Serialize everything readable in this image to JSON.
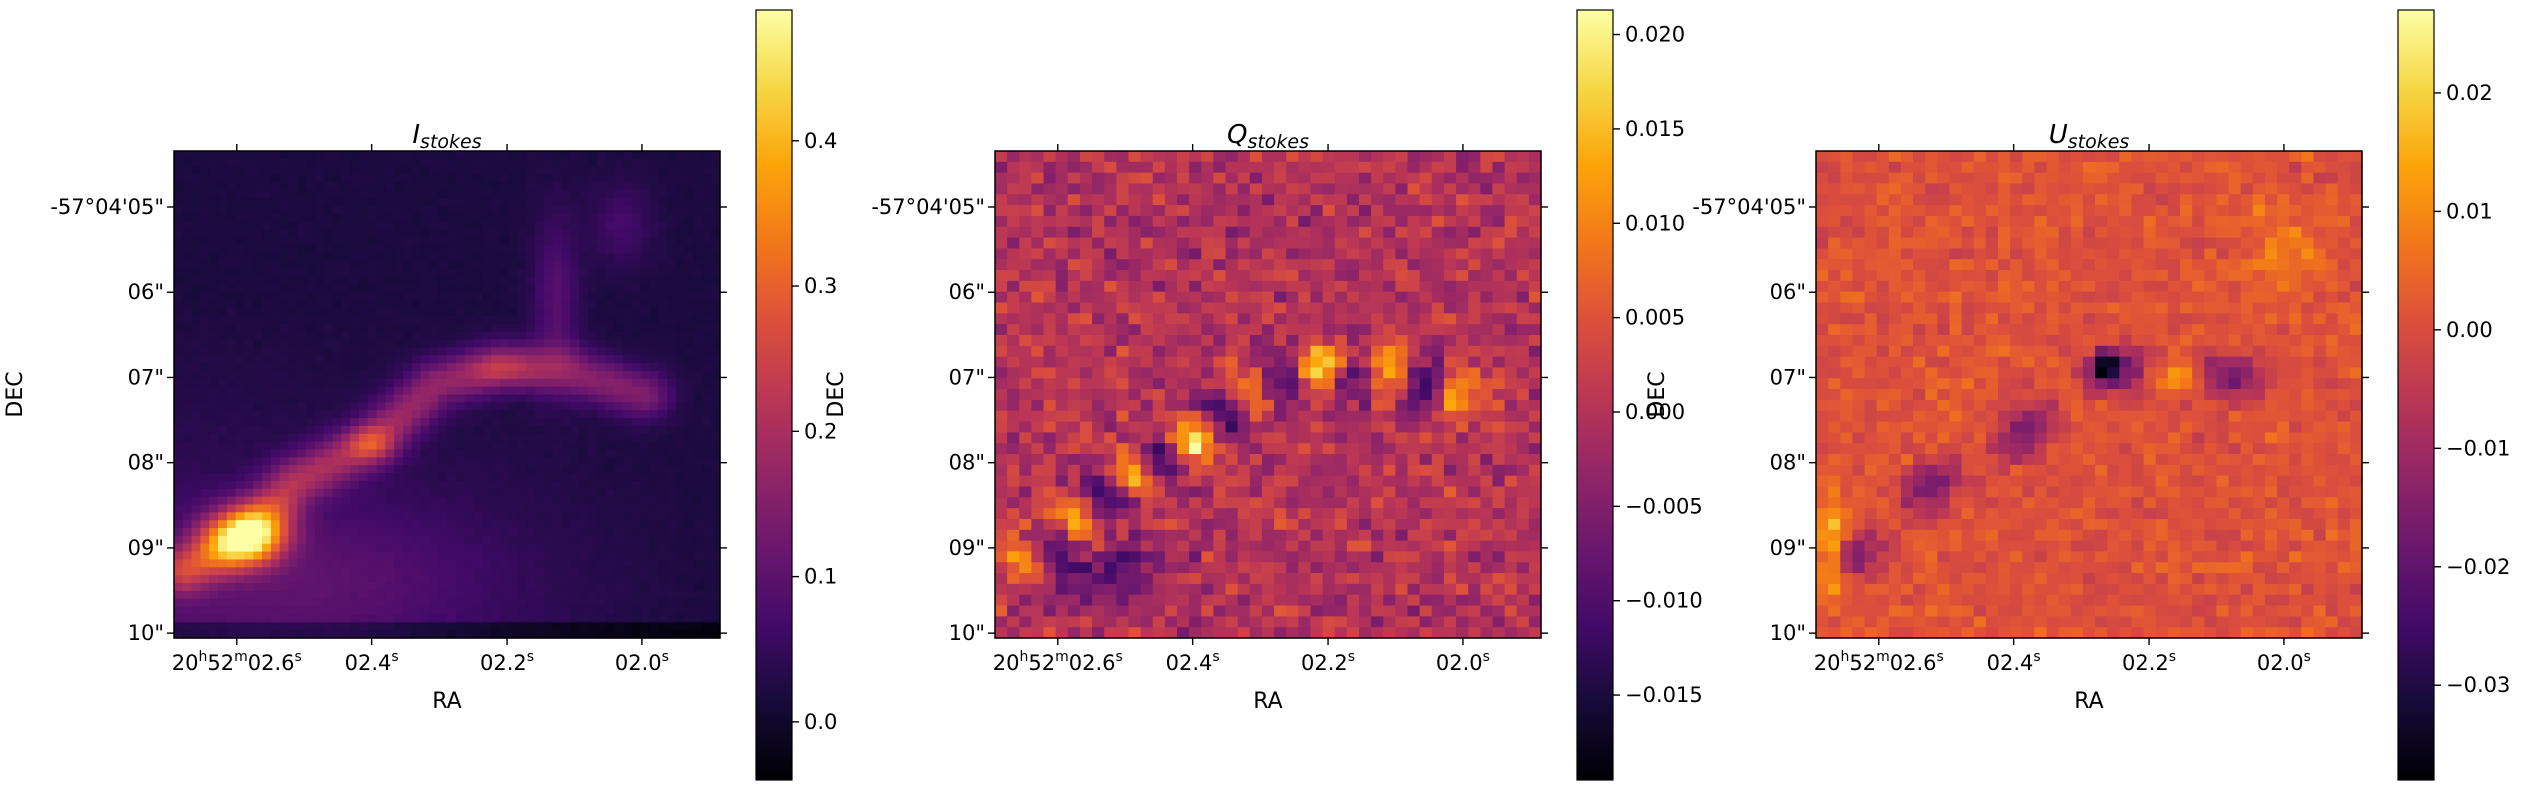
{
  "chart_data": [
    {
      "type": "heatmap",
      "title": "I",
      "title_subscript": "stokes",
      "xlabel": "RA",
      "ylabel": "DEC",
      "xticks": [
        {
          "h": "20",
          "m": "52",
          "s": "02.6"
        },
        {
          "s": "02.4"
        },
        {
          "s": "02.2"
        },
        {
          "s": "02.0"
        }
      ],
      "yticks": [
        "-57°04'05\"",
        "06\"",
        "07\"",
        "08\"",
        "09\"",
        "10\""
      ],
      "colormap": "inferno",
      "colorbar": {
        "min": -0.04,
        "max": 0.49,
        "ticks": [
          "0.0",
          "0.1",
          "0.2",
          "0.3",
          "0.4"
        ],
        "tick_values": [
          0.0,
          0.1,
          0.2,
          0.3,
          0.4
        ]
      },
      "value_range": [
        -0.04,
        0.49
      ]
    },
    {
      "type": "heatmap",
      "title": "Q",
      "title_subscript": "stokes",
      "xlabel": "RA",
      "ylabel": "DEC",
      "xticks": [
        {
          "h": "20",
          "m": "52",
          "s": "02.6"
        },
        {
          "s": "02.4"
        },
        {
          "s": "02.2"
        },
        {
          "s": "02.0"
        }
      ],
      "yticks": [
        "-57°04'05\"",
        "06\"",
        "07\"",
        "08\"",
        "09\"",
        "10\""
      ],
      "colormap": "inferno",
      "colorbar": {
        "min": -0.0195,
        "max": 0.0213,
        "ticks": [
          "0.020",
          "0.015",
          "0.010",
          "0.005",
          "0.000",
          "−0.005",
          "−0.010",
          "−0.015"
        ],
        "tick_values": [
          0.02,
          0.015,
          0.01,
          0.005,
          0.0,
          -0.005,
          -0.01,
          -0.015
        ]
      },
      "value_range": [
        -0.0195,
        0.0213
      ]
    },
    {
      "type": "heatmap",
      "title": "U",
      "title_subscript": "stokes",
      "xlabel": "RA",
      "ylabel": "DEC",
      "xticks": [
        {
          "h": "20",
          "m": "52",
          "s": "02.6"
        },
        {
          "s": "02.4"
        },
        {
          "s": "02.2"
        },
        {
          "s": "02.0"
        }
      ],
      "yticks": [
        "-57°04'05\"",
        "06\"",
        "07\"",
        "08\"",
        "09\"",
        "10\""
      ],
      "colormap": "inferno",
      "colorbar": {
        "min": -0.038,
        "max": 0.027,
        "ticks": [
          "0.02",
          "0.01",
          "0.00",
          "−0.01",
          "−0.02",
          "−0.03"
        ],
        "tick_values": [
          0.02,
          0.01,
          0.0,
          -0.01,
          -0.02,
          -0.03
        ]
      },
      "value_range": [
        -0.038,
        0.027
      ]
    }
  ]
}
